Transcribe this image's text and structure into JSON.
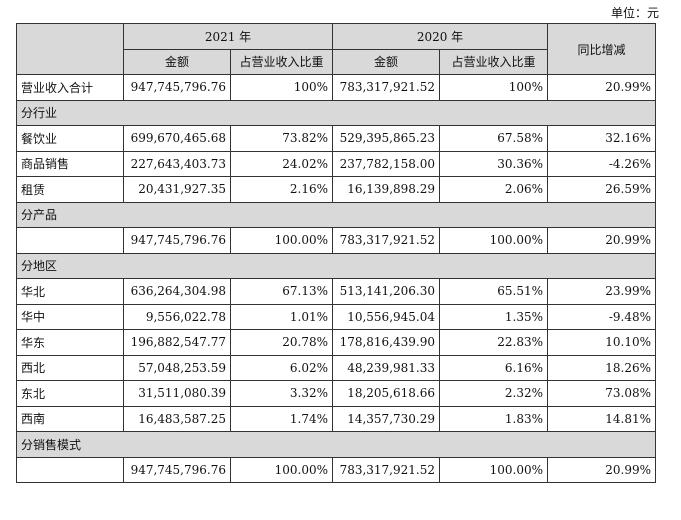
{
  "unit_label": "单位：元",
  "header": {
    "year1": "2021 年",
    "year2": "2020 年",
    "change": "同比增减",
    "amount": "金额",
    "ratio": "占营业收入比重"
  },
  "total_row": {
    "label": "营业收入合计",
    "a1": "947,745,796.76",
    "r1": "100%",
    "a2": "783,317,921.52",
    "r2": "100%",
    "chg": "20.99%"
  },
  "sections": {
    "industry": "分行业",
    "product": "分产品",
    "region": "分地区",
    "sales_mode": "分销售模式"
  },
  "industry_rows": [
    {
      "label": "餐饮业",
      "a1": "699,670,465.68",
      "r1": "73.82%",
      "a2": "529,395,865.23",
      "r2": "67.58%",
      "chg": "32.16%"
    },
    {
      "label": "商品销售",
      "a1": "227,643,403.73",
      "r1": "24.02%",
      "a2": "237,782,158.00",
      "r2": "30.36%",
      "chg": "-4.26%"
    },
    {
      "label": "租赁",
      "a1": "20,431,927.35",
      "r1": "2.16%",
      "a2": "16,139,898.29",
      "r2": "2.06%",
      "chg": "26.59%"
    }
  ],
  "product_row": {
    "label": "",
    "a1": "947,745,796.76",
    "r1": "100.00%",
    "a2": "783,317,921.52",
    "r2": "100.00%",
    "chg": "20.99%"
  },
  "region_rows": [
    {
      "label": "华北",
      "a1": "636,264,304.98",
      "r1": "67.13%",
      "a2": "513,141,206.30",
      "r2": "65.51%",
      "chg": "23.99%"
    },
    {
      "label": "华中",
      "a1": "9,556,022.78",
      "r1": "1.01%",
      "a2": "10,556,945.04",
      "r2": "1.35%",
      "chg": "-9.48%"
    },
    {
      "label": "华东",
      "a1": "196,882,547.77",
      "r1": "20.78%",
      "a2": "178,816,439.90",
      "r2": "22.83%",
      "chg": "10.10%"
    },
    {
      "label": "西北",
      "a1": "57,048,253.59",
      "r1": "6.02%",
      "a2": "48,239,981.33",
      "r2": "6.16%",
      "chg": "18.26%"
    },
    {
      "label": "东北",
      "a1": "31,511,080.39",
      "r1": "3.32%",
      "a2": "18,205,618.66",
      "r2": "2.32%",
      "chg": "73.08%"
    },
    {
      "label": "西南",
      "a1": "16,483,587.25",
      "r1": "1.74%",
      "a2": "14,357,730.29",
      "r2": "1.83%",
      "chg": "14.81%"
    }
  ],
  "sales_row": {
    "label": "",
    "a1": "947,745,796.76",
    "r1": "100.00%",
    "a2": "783,317,921.52",
    "r2": "100.00%",
    "chg": "20.99%"
  }
}
